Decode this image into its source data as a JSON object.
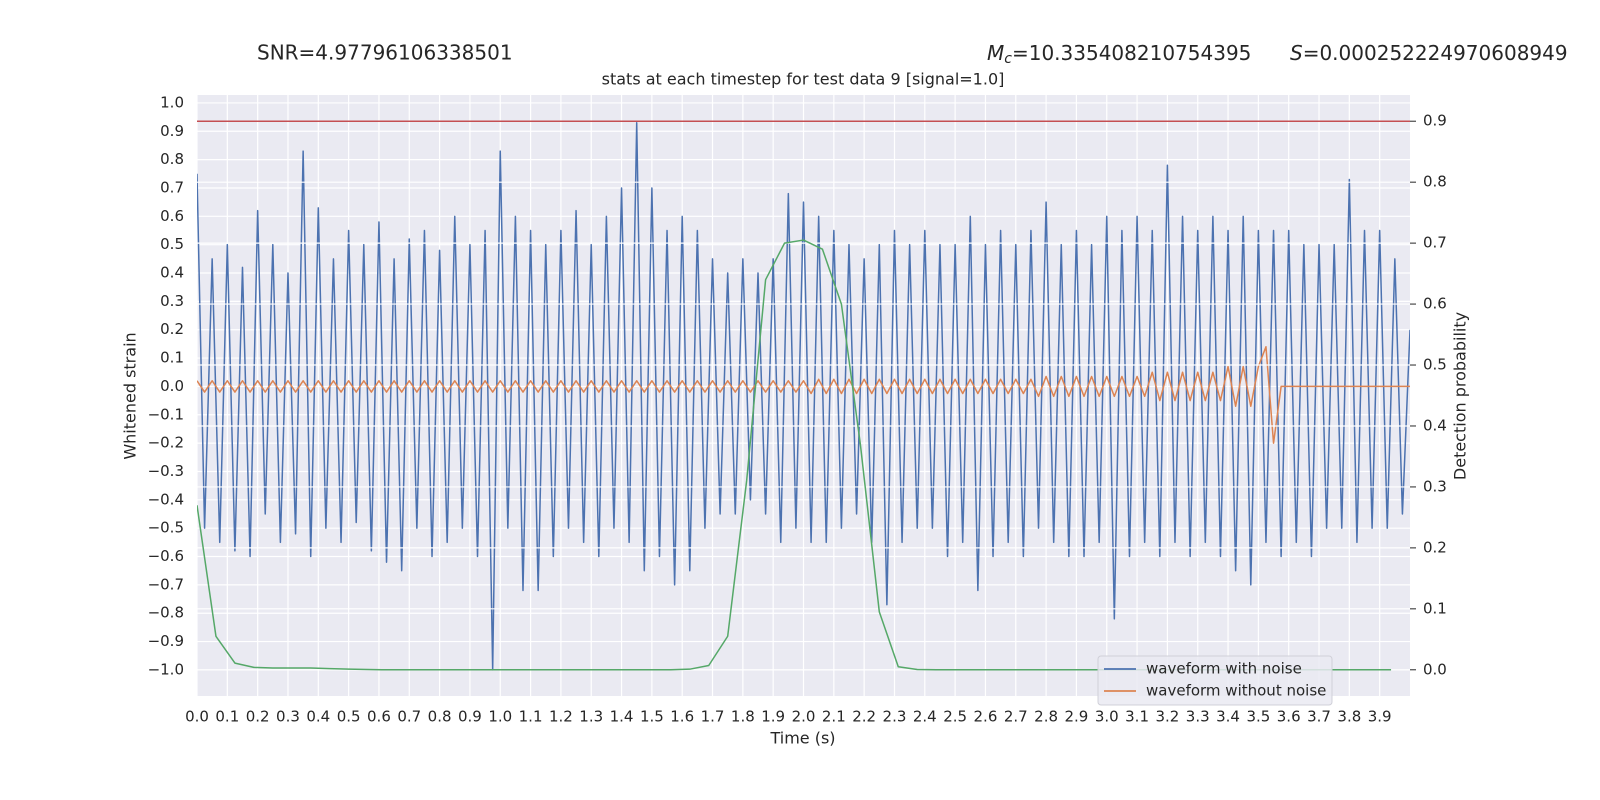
{
  "chart_data": {
    "type": "line",
    "title": "stats at each timestep for test data 9 [signal=1.0]",
    "annotations": {
      "snr": "SNR=4.97796106338501",
      "mc_symbol": "M",
      "mc_sub": "c",
      "mc_value": "=10.335408210754395",
      "s_symbol": "S",
      "s_value": "=0.000252224970608949"
    },
    "xlabel": "Time (s)",
    "ylabel": "Whitened strain",
    "y2label": "Detection probability",
    "xlim": [
      0,
      4.0
    ],
    "ylim": [
      -1.092,
      1.028
    ],
    "y2lim": [
      -0.043,
      0.943
    ],
    "grid": true,
    "y2grid": true,
    "legend": "lower right",
    "xticks": [
      {
        "value": 0,
        "label": "0.0"
      },
      {
        "value": 0.1,
        "label": "0.1"
      },
      {
        "value": 0.2,
        "label": "0.2"
      },
      {
        "value": 0.3,
        "label": "0.3"
      },
      {
        "value": 0.4,
        "label": "0.4"
      },
      {
        "value": 0.5,
        "label": "0.5"
      },
      {
        "value": 0.6,
        "label": "0.6"
      },
      {
        "value": 0.7,
        "label": "0.7"
      },
      {
        "value": 0.8,
        "label": "0.8"
      },
      {
        "value": 0.9,
        "label": "0.9"
      },
      {
        "value": 1,
        "label": "1.0"
      },
      {
        "value": 1.1,
        "label": "1.1"
      },
      {
        "value": 1.2,
        "label": "1.2"
      },
      {
        "value": 1.3,
        "label": "1.3"
      },
      {
        "value": 1.4,
        "label": "1.4"
      },
      {
        "value": 1.5,
        "label": "1.5"
      },
      {
        "value": 1.6,
        "label": "1.6"
      },
      {
        "value": 1.7,
        "label": "1.7"
      },
      {
        "value": 1.8,
        "label": "1.8"
      },
      {
        "value": 1.9,
        "label": "1.9"
      },
      {
        "value": 2,
        "label": "2.0"
      },
      {
        "value": 2.1,
        "label": "2.1"
      },
      {
        "value": 2.2,
        "label": "2.2"
      },
      {
        "value": 2.3,
        "label": "2.3"
      },
      {
        "value": 2.4,
        "label": "2.4"
      },
      {
        "value": 2.5,
        "label": "2.5"
      },
      {
        "value": 2.6,
        "label": "2.6"
      },
      {
        "value": 2.7,
        "label": "2.7"
      },
      {
        "value": 2.8,
        "label": "2.8"
      },
      {
        "value": 2.9,
        "label": "2.9"
      },
      {
        "value": 3,
        "label": "3.0"
      },
      {
        "value": 3.1,
        "label": "3.1"
      },
      {
        "value": 3.2,
        "label": "3.2"
      },
      {
        "value": 3.3,
        "label": "3.3"
      },
      {
        "value": 3.4,
        "label": "3.4"
      },
      {
        "value": 3.5,
        "label": "3.5"
      },
      {
        "value": 3.6,
        "label": "3.6"
      },
      {
        "value": 3.7,
        "label": "3.7"
      },
      {
        "value": 3.8,
        "label": "3.8"
      },
      {
        "value": 3.9,
        "label": "3.9"
      }
    ],
    "yticks": [
      {
        "value": -1,
        "label": "−1.0"
      },
      {
        "value": -0.9,
        "label": "−0.9"
      },
      {
        "value": -0.8,
        "label": "−0.8"
      },
      {
        "value": -0.7,
        "label": "−0.7"
      },
      {
        "value": -0.6,
        "label": "−0.6"
      },
      {
        "value": -0.5,
        "label": "−0.5"
      },
      {
        "value": -0.4,
        "label": "−0.4"
      },
      {
        "value": -0.3,
        "label": "−0.3"
      },
      {
        "value": -0.2,
        "label": "−0.2"
      },
      {
        "value": -0.1,
        "label": "−0.1"
      },
      {
        "value": 0,
        "label": "0.0"
      },
      {
        "value": 0.1,
        "label": "0.1"
      },
      {
        "value": 0.2,
        "label": "0.2"
      },
      {
        "value": 0.3,
        "label": "0.3"
      },
      {
        "value": 0.4,
        "label": "0.4"
      },
      {
        "value": 0.5,
        "label": "0.5"
      },
      {
        "value": 0.6,
        "label": "0.6"
      },
      {
        "value": 0.7,
        "label": "0.7"
      },
      {
        "value": 0.8,
        "label": "0.8"
      },
      {
        "value": 0.9,
        "label": "0.9"
      },
      {
        "value": 1,
        "label": "1.0"
      }
    ],
    "y2ticks": [
      {
        "value": 0,
        "label": "0.0"
      },
      {
        "value": 0.1,
        "label": "0.1"
      },
      {
        "value": 0.2,
        "label": "0.2"
      },
      {
        "value": 0.3,
        "label": "0.3"
      },
      {
        "value": 0.4,
        "label": "0.4"
      },
      {
        "value": 0.5,
        "label": "0.5"
      },
      {
        "value": 0.6,
        "label": "0.6"
      },
      {
        "value": 0.7,
        "label": "0.7"
      },
      {
        "value": 0.8,
        "label": "0.8"
      },
      {
        "value": 0.9,
        "label": "0.9"
      }
    ],
    "x": [
      0,
      0.025,
      0.05,
      0.075,
      0.1,
      0.125,
      0.15,
      0.175,
      0.2,
      0.225,
      0.25,
      0.275,
      0.3,
      0.325,
      0.35,
      0.375,
      0.4,
      0.425,
      0.45,
      0.475,
      0.5,
      0.525,
      0.55,
      0.575,
      0.6,
      0.625,
      0.65,
      0.675,
      0.7,
      0.725,
      0.75,
      0.775,
      0.8,
      0.825,
      0.85,
      0.875,
      0.9,
      0.925,
      0.95,
      0.975,
      1,
      1.025,
      1.05,
      1.075,
      1.1,
      1.125,
      1.15,
      1.175,
      1.2,
      1.225,
      1.25,
      1.275,
      1.3,
      1.325,
      1.35,
      1.375,
      1.4,
      1.425,
      1.45,
      1.475,
      1.5,
      1.525,
      1.55,
      1.575,
      1.6,
      1.625,
      1.65,
      1.675,
      1.7,
      1.725,
      1.75,
      1.775,
      1.8,
      1.825,
      1.85,
      1.875,
      1.9,
      1.925,
      1.95,
      1.975,
      2,
      2.025,
      2.05,
      2.075,
      2.1,
      2.125,
      2.15,
      2.175,
      2.2,
      2.225,
      2.25,
      2.275,
      2.3,
      2.325,
      2.35,
      2.375,
      2.4,
      2.425,
      2.45,
      2.475,
      2.5,
      2.525,
      2.55,
      2.575,
      2.6,
      2.625,
      2.65,
      2.675,
      2.7,
      2.725,
      2.75,
      2.775,
      2.8,
      2.825,
      2.85,
      2.875,
      2.9,
      2.925,
      2.95,
      2.975,
      3,
      3.025,
      3.05,
      3.075,
      3.1,
      3.125,
      3.15,
      3.175,
      3.2,
      3.225,
      3.25,
      3.275,
      3.3,
      3.325,
      3.35,
      3.375,
      3.4,
      3.425,
      3.45,
      3.475,
      3.5,
      3.525,
      3.55,
      3.575,
      3.6,
      3.625,
      3.65,
      3.675,
      3.7,
      3.725,
      3.75,
      3.775,
      3.8,
      3.825,
      3.85,
      3.875,
      3.9,
      3.925,
      3.95,
      3.975,
      4
    ],
    "series": [
      {
        "name": "waveform with noise",
        "color": "#4c72b0",
        "values": [
          0.75,
          -0.5,
          0.45,
          -0.55,
          0.5,
          -0.58,
          0.42,
          -0.6,
          0.62,
          -0.45,
          0.5,
          -0.55,
          0.4,
          -0.52,
          0.83,
          -0.6,
          0.63,
          -0.5,
          0.45,
          -0.55,
          0.55,
          -0.48,
          0.5,
          -0.58,
          0.58,
          -0.62,
          0.45,
          -0.65,
          0.52,
          -0.5,
          0.55,
          -0.6,
          0.48,
          -0.55,
          0.6,
          -0.5,
          0.5,
          -0.6,
          0.55,
          -1.0,
          0.83,
          -0.5,
          0.6,
          -0.72,
          0.55,
          -0.72,
          0.5,
          -0.6,
          0.55,
          -0.5,
          0.62,
          -0.55,
          0.5,
          -0.6,
          0.6,
          -0.5,
          0.7,
          -0.55,
          0.93,
          -0.65,
          0.7,
          -0.6,
          0.55,
          -0.7,
          0.6,
          -0.65,
          0.55,
          -0.5,
          0.45,
          -0.45,
          0.4,
          -0.45,
          0.45,
          -0.4,
          0.4,
          -0.45,
          0.45,
          -0.55,
          0.68,
          -0.5,
          0.65,
          -0.55,
          0.6,
          -0.55,
          0.55,
          -0.5,
          0.5,
          -0.45,
          0.45,
          -0.55,
          0.5,
          -0.77,
          0.55,
          -0.55,
          0.5,
          -0.5,
          0.55,
          -0.5,
          0.5,
          -0.6,
          0.5,
          -0.55,
          0.6,
          -0.72,
          0.5,
          -0.6,
          0.55,
          -0.55,
          0.5,
          -0.6,
          0.55,
          -0.5,
          0.65,
          -0.55,
          0.5,
          -0.6,
          0.55,
          -0.6,
          0.5,
          -0.55,
          0.6,
          -0.82,
          0.55,
          -0.6,
          0.6,
          -0.55,
          0.55,
          -0.6,
          0.78,
          -0.55,
          0.6,
          -0.6,
          0.55,
          -0.55,
          0.6,
          -0.6,
          0.55,
          -0.65,
          0.6,
          -0.7,
          0.55,
          -0.55,
          0.55,
          -0.6,
          0.55,
          -0.55,
          0.5,
          -0.6,
          0.5,
          -0.5,
          0.5,
          -0.5,
          0.73,
          -0.55,
          0.55,
          -0.5,
          0.55,
          -0.5,
          0.45,
          -0.45,
          0.2
        ]
      },
      {
        "name": "waveform without noise",
        "color": "#dd8452",
        "values": [
          0.02,
          -0.02,
          0.02,
          -0.02,
          0.02,
          -0.02,
          0.02,
          -0.02,
          0.02,
          -0.02,
          0.02,
          -0.02,
          0.02,
          -0.02,
          0.02,
          -0.02,
          0.02,
          -0.02,
          0.02,
          -0.02,
          0.02,
          -0.02,
          0.02,
          -0.02,
          0.02,
          -0.02,
          0.02,
          -0.02,
          0.02,
          -0.02,
          0.02,
          -0.02,
          0.02,
          -0.02,
          0.02,
          -0.02,
          0.02,
          -0.02,
          0.02,
          -0.02,
          0.02,
          -0.02,
          0.02,
          -0.02,
          0.02,
          -0.02,
          0.02,
          -0.02,
          0.02,
          -0.02,
          0.02,
          -0.02,
          0.02,
          -0.02,
          0.02,
          -0.02,
          0.02,
          -0.02,
          0.02,
          -0.02,
          0.02,
          -0.02,
          0.02,
          -0.02,
          0.02,
          -0.02,
          0.02,
          -0.02,
          0.02,
          -0.02,
          0.02,
          -0.02,
          0.02,
          -0.02,
          0.02,
          -0.02,
          0.02,
          -0.02,
          0.02,
          -0.02,
          0.02,
          -0.025,
          0.025,
          -0.025,
          0.025,
          -0.025,
          0.025,
          -0.025,
          0.025,
          -0.025,
          0.025,
          -0.025,
          0.025,
          -0.025,
          0.025,
          -0.025,
          0.025,
          -0.025,
          0.025,
          -0.025,
          0.025,
          -0.025,
          0.025,
          -0.025,
          0.025,
          -0.025,
          0.025,
          -0.025,
          0.025,
          -0.025,
          0.025,
          -0.035,
          0.035,
          -0.035,
          0.035,
          -0.035,
          0.035,
          -0.035,
          0.035,
          -0.035,
          0.035,
          -0.035,
          0.035,
          -0.035,
          0.035,
          -0.035,
          0.05,
          -0.05,
          0.05,
          -0.05,
          0.05,
          -0.05,
          0.05,
          -0.05,
          0.05,
          -0.05,
          0.07,
          -0.07,
          0.07,
          -0.07,
          0.07,
          0.14,
          -0.2,
          0,
          0,
          0,
          0,
          0,
          0,
          0,
          0,
          0,
          0,
          0,
          0,
          0,
          0,
          0,
          0,
          0,
          0
        ]
      },
      {
        "color": "#55a868",
        "axis": "y2",
        "x": [
          0,
          0.0625,
          0.125,
          0.1875,
          0.25,
          0.3125,
          0.375,
          0.4375,
          0.5,
          0.5625,
          0.625,
          0.6875,
          0.75,
          0.8125,
          0.875,
          0.9375,
          1,
          1.0625,
          1.125,
          1.1875,
          1.25,
          1.3125,
          1.375,
          1.4375,
          1.5,
          1.5625,
          1.625,
          1.6875,
          1.75,
          1.8125,
          1.875,
          1.9375,
          2,
          2.0625,
          2.125,
          2.1875,
          2.25,
          2.3125,
          2.375,
          2.4375,
          2.5,
          2.5625,
          2.625,
          2.6875,
          2.75,
          2.8125,
          2.875,
          2.9375,
          3,
          3.0625,
          3.125,
          3.1875,
          3.25,
          3.3125,
          3.375,
          3.4375,
          3.5,
          3.5625,
          3.625,
          3.6875,
          3.75,
          3.8125,
          3.875,
          3.9375
        ],
        "values": [
          0.27,
          0.055,
          0.011,
          0.004,
          0.003,
          0.003,
          0.003,
          0.002,
          0.001,
          0.0005,
          0,
          0,
          0,
          0,
          0,
          0,
          0,
          0,
          0,
          0,
          0,
          0,
          0,
          0,
          0,
          0,
          0.001,
          0.007,
          0.055,
          0.31,
          0.64,
          0.7,
          0.705,
          0.69,
          0.6,
          0.37,
          0.095,
          0.005,
          0.0005,
          0,
          0,
          0,
          0,
          0,
          0,
          0,
          0,
          0,
          0,
          0,
          0,
          0,
          0,
          0,
          0,
          0,
          0,
          0,
          0,
          0,
          0,
          0,
          0,
          0
        ]
      }
    ],
    "hlines": [
      {
        "value": 0.9,
        "axis": "y2",
        "color": "#c44e52"
      }
    ]
  }
}
